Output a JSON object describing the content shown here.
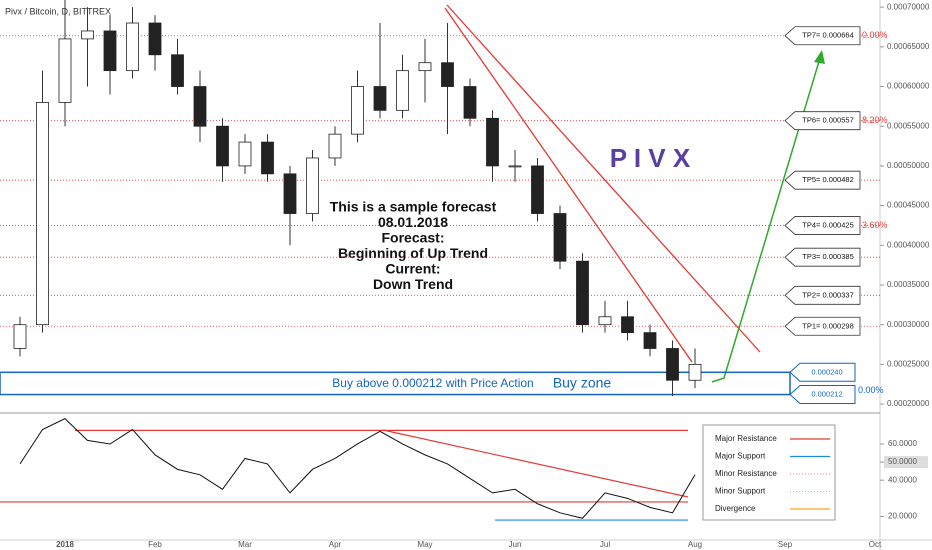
{
  "title": "Pivx / Bitcoin, D, BITTREX",
  "brand": "P I V X",
  "forecast": [
    "This is a sample forecast",
    "08.01.2018",
    "Forecast:",
    "Beginning of Up Trend",
    "Current:",
    "Down Trend"
  ],
  "buy_text": "Buy above 0.000212 with Price Action",
  "buy_zone_label": "Buy zone",
  "chart_data": [
    {
      "type": "candlestick",
      "categories": [
        null,
        null,
        "2018",
        null,
        null,
        null,
        "Feb",
        null,
        null,
        null,
        "Mar",
        null,
        null,
        null,
        "Apr",
        null,
        null,
        null,
        "May",
        null,
        null,
        null,
        "Jun",
        null,
        null,
        null,
        "Jul",
        null,
        null,
        null,
        "Aug",
        null,
        null,
        null,
        "Sep",
        null,
        null,
        null,
        "Oct"
      ],
      "open": [
        0.00027,
        0.0003,
        0.00058,
        0.00066,
        0.00067,
        0.00062,
        0.00068,
        0.00064,
        0.0006,
        0.00055,
        0.0005,
        0.00053,
        0.00049,
        0.00044,
        0.00051,
        0.00054,
        0.0006,
        0.00057,
        0.00062,
        0.00063,
        0.0006,
        0.00056,
        0.0005,
        0.0005,
        0.00044,
        0.00038,
        0.0003,
        0.00031,
        0.00029,
        0.00027,
        0.00023,
        null,
        null,
        null,
        null,
        null,
        null,
        null,
        null
      ],
      "high": [
        0.00031,
        0.00062,
        0.00071,
        0.0007,
        0.00069,
        0.0007,
        0.00069,
        0.00066,
        0.00062,
        0.00056,
        0.00054,
        0.00054,
        0.0005,
        0.00052,
        0.00055,
        0.00062,
        0.00068,
        0.00064,
        0.00066,
        0.00068,
        0.00061,
        0.00057,
        0.00052,
        0.00051,
        0.00045,
        0.00039,
        0.00033,
        0.00033,
        0.0003,
        0.00028,
        0.00027,
        null,
        null,
        null,
        null,
        null,
        null,
        null,
        null
      ],
      "low": [
        0.00026,
        0.00029,
        0.00055,
        0.0006,
        0.00059,
        0.00061,
        0.00062,
        0.00059,
        0.00053,
        0.00048,
        0.00049,
        0.00048,
        0.0004,
        0.00043,
        0.0005,
        0.00053,
        0.00056,
        0.00056,
        0.00058,
        0.00054,
        0.00055,
        0.00048,
        0.00048,
        0.00043,
        0.00037,
        0.00029,
        0.00029,
        0.00028,
        0.00026,
        0.00021,
        0.00022,
        null,
        null,
        null,
        null,
        null,
        null,
        null,
        null
      ],
      "close": [
        0.0003,
        0.00058,
        0.00066,
        0.00067,
        0.00062,
        0.00068,
        0.00064,
        0.0006,
        0.00055,
        0.0005,
        0.00053,
        0.00049,
        0.00044,
        0.00051,
        0.00054,
        0.0006,
        0.00057,
        0.00062,
        0.00063,
        0.0006,
        0.00056,
        0.0005,
        0.0005,
        0.00044,
        0.00038,
        0.0003,
        0.00031,
        0.00029,
        0.00027,
        0.00023,
        0.00025,
        null,
        null,
        null,
        null,
        null,
        null,
        null,
        null
      ],
      "up_color": "#ffffff",
      "down_color": "#222222",
      "ylim": [
        0.00019,
        0.000709
      ],
      "yticks": [
        {
          "value": 0.0002,
          "label": "0.00020000"
        },
        {
          "value": 0.00025,
          "label": "0.00025000"
        },
        {
          "value": 0.0003,
          "label": "0.00030000"
        },
        {
          "value": 0.00035,
          "label": "0.00035000"
        },
        {
          "value": 0.0004,
          "label": "0.00040000"
        },
        {
          "value": 0.00045,
          "label": "0.00045000"
        },
        {
          "value": 0.0005,
          "label": "0.00050000"
        },
        {
          "value": 0.00055,
          "label": "0.00055000"
        },
        {
          "value": 0.0006,
          "label": "0.00060000"
        },
        {
          "value": 0.00065,
          "label": "0.00065000"
        },
        {
          "value": 0.0007,
          "label": "0.00070000"
        }
      ],
      "levels": [
        {
          "value": 0.000664,
          "label": "TP7= 0.000664",
          "fib": "0.00%"
        },
        {
          "value": 0.000557,
          "label": "TP6= 0.000557",
          "fib": "8.20%"
        },
        {
          "value": 0.000482,
          "label": "TP5= 0.000482"
        },
        {
          "value": 0.000425,
          "label": "TP4= 0.000425",
          "fib": "3.60%"
        },
        {
          "value": 0.000385,
          "label": "TP3= 0.000385"
        },
        {
          "value": 0.000337,
          "label": "TP2= 0.000337"
        },
        {
          "value": 0.000298,
          "label": "TP1= 0.000298"
        }
      ],
      "level_color": "#e53935",
      "zone": {
        "top": {
          "value": 0.00024,
          "label": "0.000240"
        },
        "bottom": {
          "value": 0.000212,
          "label": "0.000212"
        },
        "fib": "0.00%",
        "color": "#1565c0"
      }
    },
    {
      "type": "line",
      "values": [
        49,
        68,
        74,
        62,
        60,
        68,
        54,
        46,
        43,
        35,
        52,
        49,
        33,
        46,
        52,
        60,
        67,
        60,
        54,
        49,
        41,
        33,
        35,
        27,
        22,
        19,
        33,
        30,
        25,
        22,
        43
      ],
      "color": "#111111",
      "ylim": [
        7,
        76
      ],
      "yticks": [
        {
          "value": 20,
          "label": "20.0000"
        },
        {
          "value": 40,
          "label": "40.0000"
        },
        {
          "value": 50,
          "label": "50.0000"
        },
        {
          "value": 60,
          "label": "60.0000"
        }
      ],
      "lines": [
        {
          "value": 67.5,
          "color": "#e53935"
        },
        {
          "value": 28,
          "color": "#e53935"
        },
        {
          "value": 18,
          "color": "#1e88e5"
        }
      ],
      "legend": [
        {
          "name": "Major Resistance",
          "color": "#e53935"
        },
        {
          "name": "Major Support",
          "color": "#1e88e5"
        },
        {
          "name": "Minor Resistance",
          "color": "#ef9a9a"
        },
        {
          "name": "Minor Support",
          "color": "#90caf9"
        },
        {
          "name": "Divergence",
          "color": "#f9a825"
        }
      ]
    }
  ]
}
